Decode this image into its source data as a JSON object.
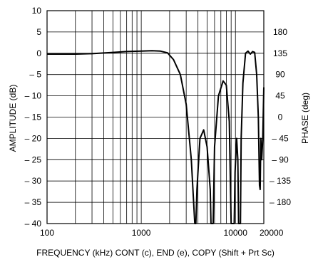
{
  "chart_data": {
    "type": "line",
    "title": "",
    "xlabel": "FREQUENCY (kHz) CONT (c), END (e), COPY (Shift + Prt Sc)",
    "ylabel": "AMPLITUDE (dB)",
    "y2label": "PHASE (deg)",
    "xscale": "log",
    "xlim": [
      100,
      20000
    ],
    "ylim": [
      -40,
      10
    ],
    "y2lim": [
      -225,
      225
    ],
    "grid": true,
    "legend": "none",
    "x_ticks": [
      {
        "value": 100,
        "label": "100"
      },
      {
        "value": 1000,
        "label": "1000"
      },
      {
        "value": 10000,
        "label": "10000"
      },
      {
        "value": 20000,
        "label": "20000"
      }
    ],
    "y_ticks": [
      {
        "value": 10,
        "label": "10"
      },
      {
        "value": 5,
        "label": "5"
      },
      {
        "value": 0,
        "label": "0"
      },
      {
        "value": -5,
        "label": "– 5"
      },
      {
        "value": -10,
        "label": "– 10"
      },
      {
        "value": -15,
        "label": "– 15"
      },
      {
        "value": -20,
        "label": "– 20"
      },
      {
        "value": -25,
        "label": "– 25"
      },
      {
        "value": -30,
        "label": "– 30"
      },
      {
        "value": -35,
        "label": "– 35"
      },
      {
        "value": -40,
        "label": "– 40"
      }
    ],
    "y2_ticks": [
      {
        "value": 180,
        "label": "180"
      },
      {
        "value": 135,
        "label": "135"
      },
      {
        "value": 90,
        "label": "90"
      },
      {
        "value": 45,
        "label": "45"
      },
      {
        "value": 0,
        "label": "0"
      },
      {
        "value": -45,
        "label": "– 45"
      },
      {
        "value": -90,
        "label": "– 90"
      },
      {
        "value": -135,
        "label": "– 135"
      },
      {
        "value": -180,
        "label": "– 180"
      }
    ],
    "series": [
      {
        "color": "#000000",
        "points": [
          [
            100,
            -0.2
          ],
          [
            200,
            -0.2
          ],
          [
            300,
            -0.1
          ],
          [
            500,
            0.2
          ],
          [
            700,
            0.4
          ],
          [
            1000,
            0.5
          ],
          [
            1300,
            0.6
          ],
          [
            1600,
            0.5
          ],
          [
            1900,
            0.1
          ],
          [
            2200,
            -1.5
          ],
          [
            2600,
            -5
          ],
          [
            3000,
            -12
          ],
          [
            3400,
            -25
          ],
          [
            3700,
            -40
          ],
          [
            3800,
            -40
          ],
          [
            3900,
            -32
          ],
          [
            4200,
            -20
          ],
          [
            4600,
            -18
          ],
          [
            5000,
            -22
          ],
          [
            5400,
            -32
          ],
          [
            5500,
            -40
          ],
          [
            5800,
            -40
          ],
          [
            6000,
            -22
          ],
          [
            6600,
            -10
          ],
          [
            7400,
            -6.5
          ],
          [
            8000,
            -7.5
          ],
          [
            8600,
            -16
          ],
          [
            9000,
            -40
          ],
          [
            9700,
            -40
          ],
          [
            9900,
            -28
          ],
          [
            10300,
            -20
          ],
          [
            10600,
            -25
          ],
          [
            10800,
            -40
          ],
          [
            11300,
            -40
          ],
          [
            11500,
            -20
          ],
          [
            12000,
            -7
          ],
          [
            12800,
            0
          ],
          [
            13600,
            0.5
          ],
          [
            14400,
            -0.2
          ],
          [
            15200,
            0.4
          ],
          [
            16000,
            0.2
          ],
          [
            16800,
            -5
          ],
          [
            17500,
            -15
          ],
          [
            18000,
            -31
          ],
          [
            18300,
            -32
          ],
          [
            18600,
            -20
          ],
          [
            19000,
            -25
          ],
          [
            19500,
            -20
          ],
          [
            20000,
            -8
          ]
        ]
      }
    ]
  }
}
